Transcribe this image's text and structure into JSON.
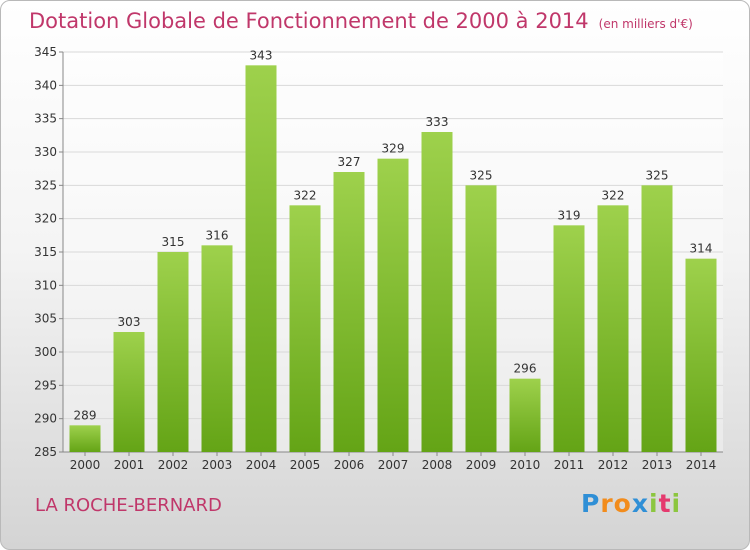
{
  "title": "Dotation Globale de Fonctionnement de 2000 à 2014",
  "unit": "(en milliers d'€)",
  "commune": "LA ROCHE-BERNARD",
  "logo": {
    "text": "Proxiti",
    "letters": [
      {
        "ch": "P",
        "color": "#2f8fd6"
      },
      {
        "ch": "r",
        "color": "#f28c1c"
      },
      {
        "ch": "o",
        "color": "#f28c1c"
      },
      {
        "ch": "x",
        "color": "#2f8fd6"
      },
      {
        "ch": "i",
        "color": "#8cc63f"
      },
      {
        "ch": "t",
        "color": "#e53a6e"
      },
      {
        "ch": "i",
        "color": "#8cc63f"
      }
    ]
  },
  "colors": {
    "accent": "#c0376a",
    "bar_top": "#9ed14c",
    "bar_bottom": "#64a416"
  },
  "chart_data": {
    "type": "bar",
    "categories": [
      "2000",
      "2001",
      "2002",
      "2003",
      "2004",
      "2005",
      "2006",
      "2007",
      "2008",
      "2009",
      "2010",
      "2011",
      "2012",
      "2013",
      "2014"
    ],
    "values": [
      289,
      303,
      315,
      316,
      343,
      322,
      327,
      329,
      333,
      325,
      296,
      319,
      322,
      325,
      314
    ],
    "ylim": [
      285,
      345
    ],
    "yticks": [
      285,
      290,
      295,
      300,
      305,
      310,
      315,
      320,
      325,
      330,
      335,
      340,
      345
    ],
    "grid": true,
    "data_labels": true
  }
}
